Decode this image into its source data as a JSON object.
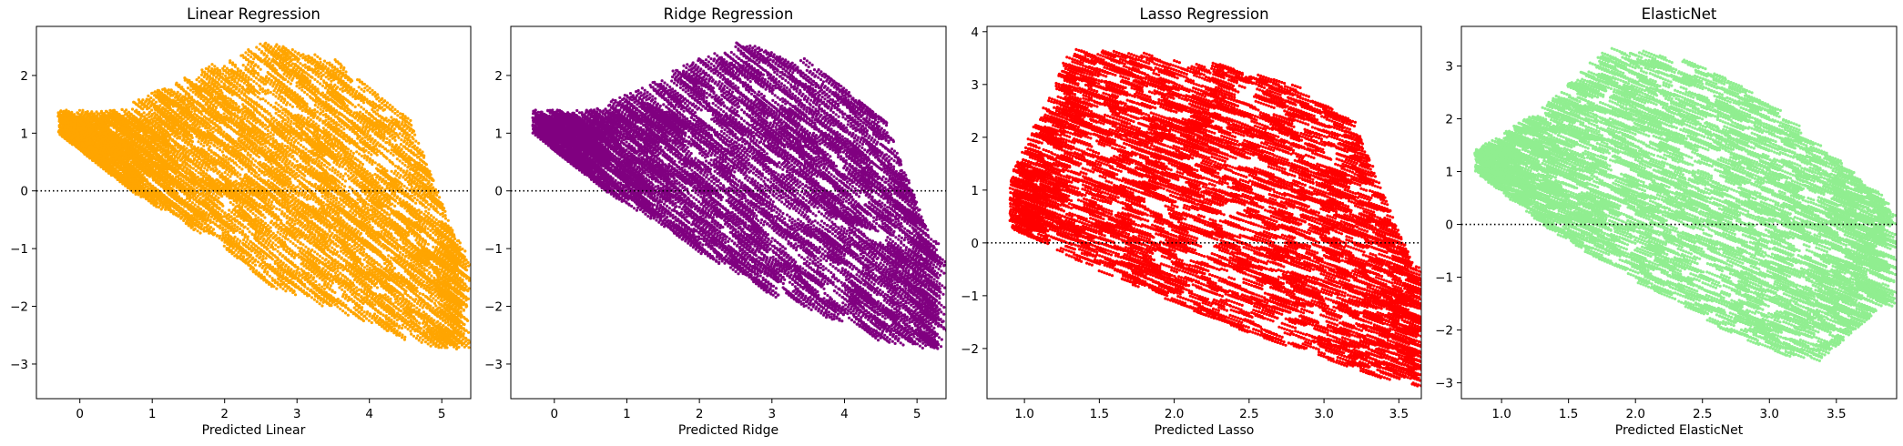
{
  "chart_data": [
    {
      "type": "scatter",
      "title": "Linear Regression",
      "xlabel": "Predicted Linear",
      "ylabel": "",
      "color": "#FFA500",
      "xlim": [
        -0.6,
        5.4
      ],
      "ylim": [
        -3.6,
        2.85
      ],
      "xticks": [
        0,
        1,
        2,
        3,
        4,
        5
      ],
      "yticks": [
        -3,
        -2,
        -1,
        0,
        1,
        2
      ],
      "reference_line": {
        "y": 0,
        "style": "dotted",
        "color": "#000000"
      },
      "grid": false,
      "point_cloud": {
        "x_range": [
          -0.3,
          5.2
        ],
        "residual_band": [
          {
            "x": -0.3,
            "low": 1.0,
            "high": 1.4
          },
          {
            "x": 0.5,
            "low": 0.2,
            "high": 1.4
          },
          {
            "x": 1.5,
            "low": -0.6,
            "high": 2.0
          },
          {
            "x": 2.5,
            "low": -1.5,
            "high": 2.6
          },
          {
            "x": 3.5,
            "low": -2.0,
            "high": 2.3
          },
          {
            "x": 4.5,
            "low": -2.5,
            "high": 1.3
          },
          {
            "x": 5.2,
            "low": -2.6,
            "high": -1.0
          }
        ]
      }
    },
    {
      "type": "scatter",
      "title": "Ridge Regression",
      "xlabel": "Predicted Ridge",
      "ylabel": "",
      "color": "#800080",
      "xlim": [
        -0.6,
        5.4
      ],
      "ylim": [
        -3.6,
        2.85
      ],
      "xticks": [
        0,
        1,
        2,
        3,
        4,
        5
      ],
      "yticks": [
        -3,
        -2,
        -1,
        0,
        1,
        2
      ],
      "reference_line": {
        "y": 0,
        "style": "dotted",
        "color": "#000000"
      },
      "grid": false,
      "point_cloud": {
        "x_range": [
          -0.3,
          5.2
        ],
        "residual_band": [
          {
            "x": -0.3,
            "low": 1.0,
            "high": 1.4
          },
          {
            "x": 0.5,
            "low": 0.2,
            "high": 1.4
          },
          {
            "x": 1.5,
            "low": -0.6,
            "high": 2.0
          },
          {
            "x": 2.5,
            "low": -1.5,
            "high": 2.6
          },
          {
            "x": 3.5,
            "low": -2.0,
            "high": 2.3
          },
          {
            "x": 4.5,
            "low": -2.5,
            "high": 1.3
          },
          {
            "x": 5.2,
            "low": -2.6,
            "high": -1.0
          }
        ]
      }
    },
    {
      "type": "scatter",
      "title": "Lasso Regression",
      "xlabel": "Predicted Lasso",
      "ylabel": "",
      "color": "#FF0000",
      "xlim": [
        0.75,
        3.65
      ],
      "ylim": [
        -2.95,
        4.1
      ],
      "xticks": [
        1.0,
        1.5,
        2.0,
        2.5,
        3.0,
        3.5
      ],
      "yticks": [
        -2,
        -1,
        0,
        1,
        2,
        3,
        4
      ],
      "reference_line": {
        "y": 0,
        "style": "dotted",
        "color": "#000000"
      },
      "grid": false,
      "point_cloud": {
        "x_range": [
          0.9,
          3.6
        ],
        "residual_band": [
          {
            "x": 0.9,
            "low": 0.3,
            "high": 1.2
          },
          {
            "x": 1.3,
            "low": -0.3,
            "high": 3.7
          },
          {
            "x": 1.8,
            "low": -0.9,
            "high": 3.6
          },
          {
            "x": 2.3,
            "low": -1.5,
            "high": 3.4
          },
          {
            "x": 2.8,
            "low": -2.0,
            "high": 3.0
          },
          {
            "x": 3.2,
            "low": -2.4,
            "high": 2.2
          },
          {
            "x": 3.6,
            "low": -2.7,
            "high": -0.6
          }
        ]
      }
    },
    {
      "type": "scatter",
      "title": "ElasticNet",
      "xlabel": "Predicted ElasticNet",
      "ylabel": "",
      "color": "#90EE90",
      "xlim": [
        0.7,
        3.95
      ],
      "ylim": [
        -3.3,
        3.75
      ],
      "xticks": [
        1.0,
        1.5,
        2.0,
        2.5,
        3.0,
        3.5
      ],
      "yticks": [
        -3,
        -2,
        -1,
        0,
        1,
        2,
        3
      ],
      "reference_line": {
        "y": 0,
        "style": "dotted",
        "color": "#000000"
      },
      "grid": false,
      "point_cloud": {
        "x_range": [
          0.8,
          3.85
        ],
        "residual_band": [
          {
            "x": 0.8,
            "low": 1.0,
            "high": 1.4
          },
          {
            "x": 1.3,
            "low": 0.0,
            "high": 2.2
          },
          {
            "x": 1.8,
            "low": -0.8,
            "high": 3.4
          },
          {
            "x": 2.3,
            "low": -1.5,
            "high": 3.2
          },
          {
            "x": 2.8,
            "low": -2.2,
            "high": 2.6
          },
          {
            "x": 3.3,
            "low": -2.6,
            "high": 1.6
          },
          {
            "x": 3.85,
            "low": -1.4,
            "high": 0.4
          }
        ]
      }
    }
  ]
}
